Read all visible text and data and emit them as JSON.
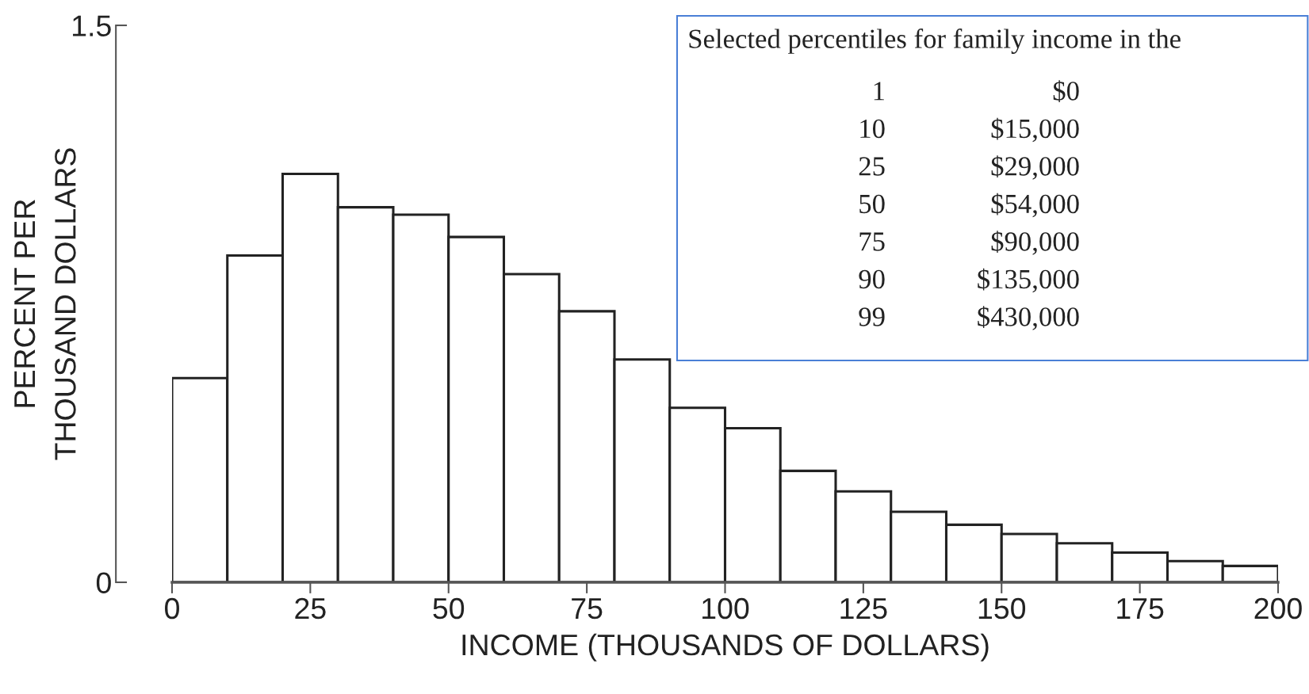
{
  "chart_data": {
    "type": "histogram",
    "xlabel": "INCOME (THOUSANDS OF DOLLARS)",
    "ylabel": "PERCENT PER\nTHOUSAND DOLLARS",
    "bins": [
      0,
      10,
      20,
      30,
      40,
      50,
      60,
      70,
      80,
      90,
      100,
      110,
      120,
      130,
      140,
      150,
      160,
      170,
      180,
      190,
      200
    ],
    "values": [
      0.55,
      0.88,
      1.1,
      1.01,
      0.99,
      0.93,
      0.83,
      0.73,
      0.6,
      0.47,
      0.415,
      0.3,
      0.245,
      0.19,
      0.155,
      0.13,
      0.105,
      0.08,
      0.057,
      0.044
    ],
    "color": "#ffffff",
    "xlim": [
      0,
      200
    ],
    "xticks": [
      0,
      25,
      50,
      75,
      100,
      125,
      150,
      175,
      200
    ],
    "ylim": [
      0,
      1.5
    ],
    "yticks": [
      0,
      1.5
    ],
    "grid": false,
    "legend": false,
    "annotations": [
      "Selected percentiles for family income in the",
      "1",
      "$0",
      "10",
      "$15,000",
      "25",
      "$29,000",
      "50",
      "$54,000",
      "75",
      "$90,000",
      "90",
      "$135,000",
      "99",
      "$430,000"
    ]
  }
}
